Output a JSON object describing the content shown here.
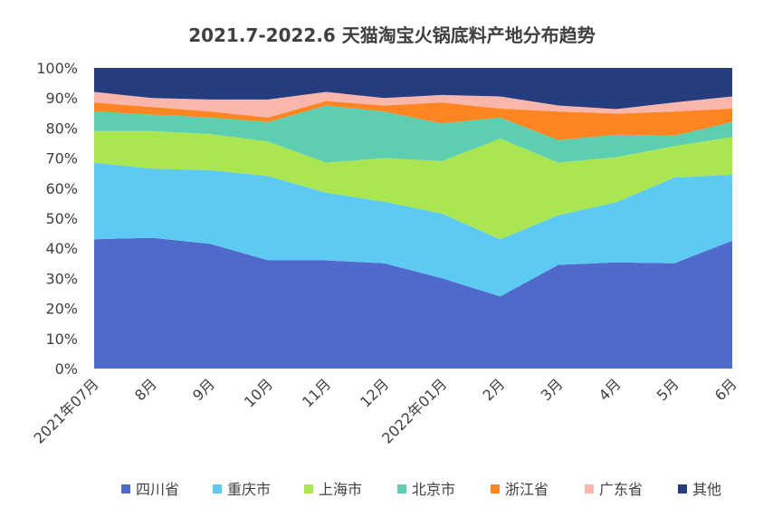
{
  "chart_data": {
    "type": "area",
    "stacked": true,
    "percent_stacked": true,
    "title": "2021.7-2022.6 天猫淘宝火锅底料产地分布趋势",
    "categories": [
      "2021年07月",
      "8月",
      "9月",
      "10月",
      "11月",
      "12月",
      "2022年01月",
      "2月",
      "3月",
      "4月",
      "5月",
      "6月"
    ],
    "y_ticks": [
      "0%",
      "10%",
      "20%",
      "30%",
      "40%",
      "50%",
      "60%",
      "70%",
      "80%",
      "90%",
      "100%"
    ],
    "ylim": [
      0,
      100
    ],
    "legend_position": "bottom",
    "series": [
      {
        "name": "四川省",
        "color": "#4F6ACB",
        "values": [
          43,
          43.5,
          41.5,
          36,
          36,
          35,
          30,
          24,
          34.5,
          35.3,
          35,
          42.5
        ]
      },
      {
        "name": "重庆市",
        "color": "#5DCAF4",
        "values": [
          25.5,
          23,
          24.5,
          28,
          22.5,
          20.5,
          21.5,
          19,
          16.5,
          20,
          28.5,
          22
        ]
      },
      {
        "name": "上海市",
        "color": "#A9E651",
        "values": [
          10.5,
          12.5,
          12,
          11.5,
          10,
          14.5,
          17.5,
          33.5,
          17.5,
          15,
          10.5,
          12.5
        ]
      },
      {
        "name": "北京市",
        "color": "#5DCEB0",
        "values": [
          6.5,
          5.5,
          5.5,
          6.5,
          19,
          15.5,
          12.5,
          7,
          7.5,
          7.5,
          3.5,
          5
        ]
      },
      {
        "name": "浙江省",
        "color": "#FF8523",
        "values": [
          3,
          2.5,
          2,
          1.5,
          1.5,
          2,
          7,
          3,
          9.5,
          7,
          8,
          4.5
        ]
      },
      {
        "name": "广东省",
        "color": "#FBB6AC",
        "values": [
          3.5,
          3,
          4,
          6,
          3,
          2.5,
          2.5,
          4,
          2,
          1.5,
          3,
          4
        ]
      },
      {
        "name": "其他",
        "color": "#253C7E",
        "values": [
          8,
          10,
          10.5,
          10.5,
          8,
          10,
          9,
          9.5,
          12.5,
          13.7,
          11.5,
          9.5
        ]
      }
    ]
  }
}
